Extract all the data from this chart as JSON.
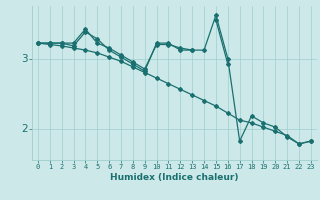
{
  "x": [
    0,
    1,
    2,
    3,
    4,
    5,
    6,
    7,
    8,
    9,
    10,
    11,
    12,
    13,
    14,
    15,
    16,
    17,
    18,
    19,
    20,
    21,
    22,
    23
  ],
  "line1_y": [
    3.22,
    3.22,
    3.22,
    3.18,
    3.38,
    3.28,
    3.12,
    3.02,
    2.92,
    2.82,
    3.22,
    3.22,
    3.12,
    3.12,
    null,
    3.55,
    2.92,
    null,
    null,
    null,
    null,
    null,
    null,
    null
  ],
  "line2_y": [
    3.22,
    3.22,
    3.22,
    3.22,
    3.42,
    3.22,
    3.15,
    3.05,
    2.95,
    2.85,
    3.2,
    3.2,
    3.15,
    3.12,
    3.12,
    3.62,
    3.0,
    1.82,
    2.18,
    2.08,
    2.02,
    1.88,
    1.78,
    1.82
  ],
  "line3_y": [
    3.22,
    3.2,
    3.18,
    3.15,
    3.12,
    3.08,
    3.02,
    2.96,
    2.88,
    2.8,
    2.72,
    2.64,
    2.56,
    2.48,
    2.4,
    2.32,
    2.22,
    2.12,
    2.08,
    2.02,
    1.96,
    1.9,
    1.78,
    1.82
  ],
  "background_color": "#cde8e8",
  "grid_color": "#9ecece",
  "line_color": "#1a7070",
  "xlabel": "Humidex (Indice chaleur)",
  "ytick_vals": [
    2,
    3
  ],
  "ylim": [
    1.55,
    3.75
  ],
  "xlim": [
    -0.5,
    23.5
  ]
}
